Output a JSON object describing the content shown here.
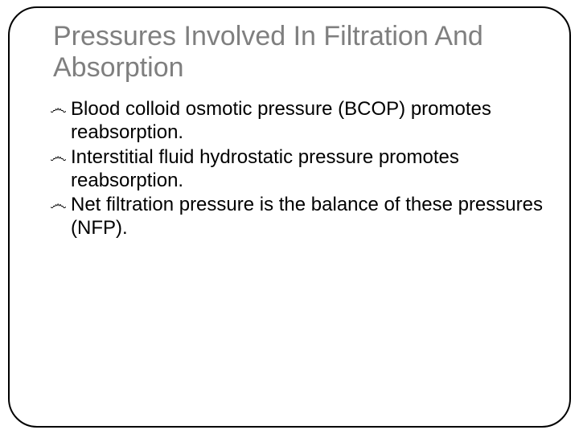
{
  "slide": {
    "title": "Pressures Involved In Filtration And Absorption",
    "bullets": [
      "Blood colloid osmotic pressure (BCOP) promotes reabsorption.",
      "Interstitial fluid hydrostatic pressure promotes reabsorption.",
      "Net filtration pressure is the balance of these pressures (NFP)."
    ],
    "style": {
      "title_color": "#7f7f7f",
      "title_fontsize": 34,
      "body_color": "#000000",
      "body_fontsize": 24,
      "border_color": "#000000",
      "border_radius": 36,
      "background": "#ffffff",
      "bullet_glyph": "෴"
    }
  }
}
